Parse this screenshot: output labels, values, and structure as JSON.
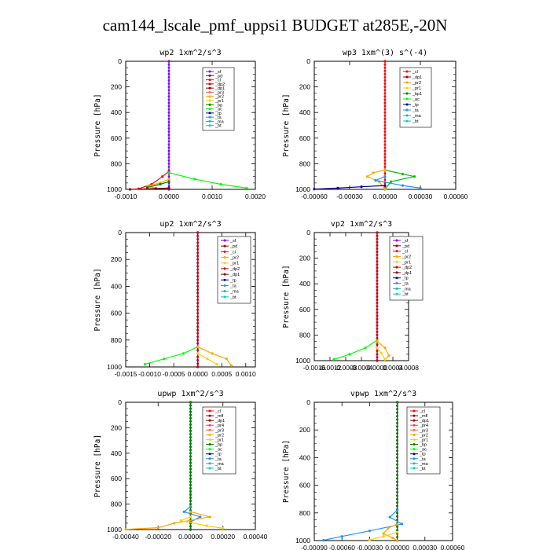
{
  "title": "cam144_lscale_pmf_uppsi1  BUDGET at285E,-20N",
  "chart_data": [
    {
      "type": "line",
      "title": "wp2   1xm^2/s^3",
      "ylabel": "Pressure  [hPa]",
      "xlim": [
        -0.001,
        0.002
      ],
      "ylim": [
        1000,
        0
      ],
      "xticks": [
        -0.001,
        0.0,
        0.001,
        0.002
      ],
      "xtick_labels": [
        "-0.0010",
        "0.0000",
        "0.0010",
        "0.0020"
      ],
      "yticks": [
        0,
        200,
        400,
        600,
        800,
        1000
      ],
      "ytick_labels": [
        "0",
        "200",
        "400",
        "600",
        "800",
        "1000"
      ],
      "legend": "top-right",
      "legend_entries": [
        "_sf",
        "_pd",
        "_cl",
        "_dp2",
        "_dp1",
        "_pr3",
        "_pr2",
        "_pr1",
        "_bp",
        "_ac",
        "_tp",
        "_ta",
        "_ma",
        "_bt"
      ],
      "series": [
        {
          "name": "_sf",
          "color": "#7f00ff",
          "points": [
            [
              0.0,
              0
            ],
            [
              0.0,
              1000
            ]
          ]
        },
        {
          "name": "_dp1",
          "color": "#ff0000",
          "points": [
            [
              0.0,
              860
            ],
            [
              -0.00015,
              900
            ],
            [
              -0.0004,
              960
            ],
            [
              -0.0007,
              995
            ]
          ]
        },
        {
          "name": "_pr2",
          "color": "#ffa500",
          "points": [
            [
              0.0,
              920
            ],
            [
              -0.0002,
              950
            ],
            [
              -0.0005,
              975
            ],
            [
              -0.0003,
              990
            ]
          ]
        },
        {
          "name": "_ac",
          "color": "#00ff00",
          "points": [
            [
              0.0,
              870
            ],
            [
              0.0006,
              920
            ],
            [
              0.0012,
              960
            ],
            [
              0.0018,
              990
            ]
          ]
        },
        {
          "name": "_pr1",
          "color": "#008000",
          "points": [
            [
              0.0,
              940
            ],
            [
              -0.0002,
              960
            ],
            [
              -0.0005,
              985
            ]
          ]
        },
        {
          "name": "_ta",
          "color": "#00008b",
          "points": [
            [
              0.0,
              990
            ],
            [
              -0.0003,
              995
            ]
          ]
        },
        {
          "name": "_pd",
          "color": "#8b0000",
          "points": [
            [
              0.0,
              990
            ],
            [
              -0.0009,
              1000
            ]
          ]
        }
      ]
    },
    {
      "type": "line",
      "title": "wp3   1xm^(3) s^(-4)",
      "ylabel": "Pressure  [hPa]",
      "xlim": [
        -0.0006,
        0.0006
      ],
      "ylim": [
        1000,
        0
      ],
      "xticks": [
        -0.0006,
        -0.0003,
        0.0,
        0.0003,
        0.0006
      ],
      "xtick_labels": [
        "-0.00060",
        "-0.00030",
        "0.00000",
        "0.00030",
        "0.00060"
      ],
      "yticks": [
        0,
        200,
        400,
        600,
        800,
        1000
      ],
      "ytick_labels": [
        "0",
        "200",
        "400",
        "600",
        "800",
        "1000"
      ],
      "legend": "top-right",
      "legend_entries": [
        "_cl",
        "_dp1",
        "_pr2",
        "_pr1",
        "_bp1",
        "_ac",
        "_tp",
        "_ta",
        "_ma",
        "_bt"
      ],
      "series": [
        {
          "name": "_cl",
          "color": "#ff0000",
          "points": [
            [
              0.0,
              0
            ],
            [
              0.0,
              1000
            ]
          ]
        },
        {
          "name": "_ac",
          "color": "#00c000",
          "points": [
            [
              0.0,
              850
            ],
            [
              0.00015,
              880
            ],
            [
              0.00025,
              900
            ],
            [
              5e-05,
              940
            ],
            [
              0.0,
              1000
            ]
          ]
        },
        {
          "name": "_pr2",
          "color": "#ffa500",
          "points": [
            [
              0.0,
              850
            ],
            [
              -0.0001,
              870
            ],
            [
              -0.00015,
              900
            ],
            [
              -5e-05,
              940
            ],
            [
              0.0,
              1000
            ]
          ]
        },
        {
          "name": "_ta",
          "color": "#1e90ff",
          "points": [
            [
              0.0,
              900
            ],
            [
              -8e-05,
              930
            ],
            [
              0.00015,
              970
            ],
            [
              0.0003,
              990
            ]
          ]
        },
        {
          "name": "_tp",
          "color": "#00008b",
          "points": [
            [
              0.0,
              970
            ],
            [
              -0.0002,
              980
            ],
            [
              -0.0004,
              990
            ],
            [
              -0.0006,
              998
            ]
          ]
        }
      ]
    },
    {
      "type": "line",
      "title": "up2   1xm^2/s^3",
      "ylabel": "Pressure  [hPa]",
      "xlim": [
        -0.0015,
        0.0012
      ],
      "ylim": [
        1000,
        0
      ],
      "xticks": [
        -0.0015,
        -0.001,
        -0.0005,
        0.0,
        0.0005,
        0.001
      ],
      "xtick_labels": [
        "-0.0015",
        "-0.0010",
        "-0.0005",
        "0.0000",
        "0.0005",
        "0.0010"
      ],
      "yticks": [
        0,
        200,
        400,
        600,
        800,
        1000
      ],
      "ytick_labels": [
        "0",
        "200",
        "400",
        "600",
        "800",
        "1000"
      ],
      "legend": "top-right",
      "legend_entries": [
        "_sf",
        "_pd",
        "_cl",
        "_pr2",
        "_pr1",
        "_dp2",
        "_dp1",
        "_tp",
        "_ta",
        "_ma",
        "_bt"
      ],
      "series": [
        {
          "name": "_sf",
          "color": "#7f00ff",
          "points": [
            [
              0.0,
              0
            ],
            [
              0.0,
              1000
            ]
          ]
        },
        {
          "name": "_cl",
          "color": "#cc0000",
          "points": [
            [
              0.0,
              0
            ],
            [
              0.0,
              1000
            ]
          ]
        },
        {
          "name": "_dp1",
          "color": "#00ff00",
          "points": [
            [
              0.0,
              850
            ],
            [
              -0.0003,
              900
            ],
            [
              -0.0007,
              940
            ],
            [
              -0.0011,
              980
            ]
          ]
        },
        {
          "name": "_pr2",
          "color": "#ffa500",
          "points": [
            [
              0.0,
              850
            ],
            [
              0.0003,
              900
            ],
            [
              0.0006,
              940
            ],
            [
              0.0007,
              990
            ]
          ]
        },
        {
          "name": "_pr1",
          "color": "#ffd000",
          "points": [
            [
              0.0,
              900
            ],
            [
              0.0002,
              940
            ],
            [
              0.0004,
              980
            ]
          ]
        }
      ]
    },
    {
      "type": "line",
      "title": "vp2   1xm^2/s^3",
      "ylabel": "Pressure  [hPa]",
      "xlim": [
        -0.0016,
        0.0008
      ],
      "ylim": [
        1000,
        0
      ],
      "xticks": [
        -0.0016,
        -0.0012,
        -0.0008,
        -0.0004,
        0.0,
        0.0004,
        0.0008
      ],
      "xtick_labels": [
        "-0.0016",
        "-0.0012",
        "-0.0008",
        "-0.0004",
        "0.0000",
        "0.0004",
        "0.0008"
      ],
      "yticks": [
        0,
        200,
        400,
        600,
        800,
        1000
      ],
      "ytick_labels": [
        "0",
        "200",
        "400",
        "600",
        "800",
        "1000"
      ],
      "legend": "top-right",
      "legend_entries": [
        "_sf",
        "_pd",
        "_cl",
        "_pr2",
        "_pr1",
        "_dp2",
        "_dp1",
        "_tp",
        "_ta",
        "_ma",
        "_bt"
      ],
      "series": [
        {
          "name": "_sf",
          "color": "#7f00ff",
          "points": [
            [
              0.0,
              0
            ],
            [
              0.0,
              1000
            ]
          ]
        },
        {
          "name": "_cl",
          "color": "#cc0000",
          "points": [
            [
              0.0,
              0
            ],
            [
              0.0,
              1000
            ]
          ]
        },
        {
          "name": "_dp1",
          "color": "#00ff00",
          "points": [
            [
              0.0,
              840
            ],
            [
              -0.0003,
              900
            ],
            [
              -0.0007,
              950
            ],
            [
              -0.0011,
              990
            ]
          ]
        },
        {
          "name": "_pr2",
          "color": "#ffa500",
          "points": [
            [
              0.0,
              850
            ],
            [
              0.0002,
              900
            ],
            [
              0.0003,
              960
            ],
            [
              0.0002,
              990
            ]
          ]
        },
        {
          "name": "_pr1",
          "color": "#ffd000",
          "points": [
            [
              0.0,
              900
            ],
            [
              0.0001,
              940
            ],
            [
              0.0002,
              990
            ]
          ]
        }
      ]
    },
    {
      "type": "line",
      "title": "upwp   1xm^2/s^3",
      "ylabel": "Pressure  [hPa]",
      "xlim": [
        -0.0004,
        0.0004
      ],
      "ylim": [
        1000,
        0
      ],
      "xticks": [
        -0.0004,
        -0.0002,
        0.0,
        0.0002,
        0.0004
      ],
      "xtick_labels": [
        "-0.00040",
        "-0.00020",
        "0.00000",
        "0.00020",
        "0.00040"
      ],
      "yticks": [
        0,
        200,
        400,
        600,
        800,
        1000
      ],
      "ytick_labels": [
        "0",
        "200",
        "400",
        "600",
        "800",
        "1000"
      ],
      "legend": "top-right",
      "legend_entries": [
        "_cl",
        "_mfl",
        "_dp1",
        "_pr4",
        "_pr3",
        "_pr2",
        "_pr1",
        "_bp",
        "_ac",
        "_tp",
        "_ta",
        "_ma",
        "_bt"
      ],
      "series": [
        {
          "name": "_cl",
          "color": "#7f00ff",
          "points": [
            [
              0.0,
              0
            ],
            [
              0.0,
              1000
            ]
          ]
        },
        {
          "name": "_dp1",
          "color": "#8b0000",
          "points": [
            [
              0.0,
              0
            ],
            [
              0.0,
              1000
            ]
          ]
        },
        {
          "name": "_ac",
          "color": "#008000",
          "points": [
            [
              0.0,
              0
            ],
            [
              0.0,
              1000
            ]
          ]
        },
        {
          "name": "_ta",
          "color": "#1e90ff",
          "points": [
            [
              0.0,
              820
            ],
            [
              -4e-05,
              860
            ],
            [
              6e-05,
              900
            ],
            [
              0.0,
              940
            ]
          ]
        },
        {
          "name": "_pr2",
          "color": "#ffa500",
          "points": [
            [
              0.0,
              860
            ],
            [
              0.00012,
              900
            ],
            [
              -0.0001,
              950
            ],
            [
              -0.0002,
              985
            ],
            [
              -0.0004,
              998
            ]
          ]
        },
        {
          "name": "_pr1",
          "color": "#ffd000",
          "points": [
            [
              0.0,
              900
            ],
            [
              -6e-05,
              930
            ],
            [
              0.0001,
              970
            ],
            [
              0.0002,
              990
            ]
          ]
        }
      ]
    },
    {
      "type": "line",
      "title": "vpwp   1xm^2/s^3",
      "ylabel": "Pressure  [hPa]",
      "xlim": [
        -0.0009,
        0.0006
      ],
      "ylim": [
        1000,
        0
      ],
      "xticks": [
        -0.0009,
        -0.0006,
        -0.0003,
        0.0,
        0.0003,
        0.0006
      ],
      "xtick_labels": [
        "-0.00090",
        "-0.00060",
        "-0.00030",
        "0.00000",
        "0.00030",
        "0.00060"
      ],
      "yticks": [
        0,
        200,
        400,
        600,
        800,
        1000
      ],
      "ytick_labels": [
        "0",
        "200",
        "400",
        "600",
        "800",
        "1000"
      ],
      "legend": "top-right",
      "legend_entries": [
        "_cl",
        "_mfl",
        "_dp1",
        "_pr4",
        "_pr3",
        "_pr2",
        "_pr1",
        "_bp",
        "_ac",
        "_tp",
        "_ta",
        "_ma",
        "_bt"
      ],
      "series": [
        {
          "name": "_cl",
          "color": "#7f00ff",
          "points": [
            [
              0.0,
              0
            ],
            [
              0.0,
              1000
            ]
          ]
        },
        {
          "name": "_dp1",
          "color": "#8b0000",
          "points": [
            [
              0.0,
              0
            ],
            [
              0.0,
              1000
            ]
          ]
        },
        {
          "name": "_ac",
          "color": "#008000",
          "points": [
            [
              0.0,
              0
            ],
            [
              0.0,
              1000
            ]
          ]
        },
        {
          "name": "_ta",
          "color": "#1e90ff",
          "points": [
            [
              0.0,
              780
            ],
            [
              -8e-05,
              830
            ],
            [
              5e-05,
              880
            ],
            [
              -0.0003,
              930
            ],
            [
              -0.0006,
              970
            ],
            [
              -0.0008,
              998
            ]
          ]
        },
        {
          "name": "_pr2",
          "color": "#ffa500",
          "points": [
            [
              0.0,
              880
            ],
            [
              -0.0001,
              910
            ],
            [
              -0.00015,
              950
            ],
            [
              -5e-05,
              980
            ],
            [
              0.0,
              1000
            ]
          ]
        },
        {
          "name": "_pr1",
          "color": "#ffd000",
          "points": [
            [
              0.0,
              940
            ],
            [
              -0.00015,
              970
            ],
            [
              -0.0003,
              995
            ]
          ]
        }
      ]
    }
  ],
  "colors": {
    "_sf": "#7f00ff",
    "_pd": "#8b0000",
    "_cl": "#ff0000",
    "_mfl": "#8b0000",
    "_dp2": "#cc0000",
    "_dp1": "#8b0000",
    "_pr4": "#ff4040",
    "_pr3": "#ff6347",
    "_pr2": "#ffa500",
    "_pr1": "#ffd000",
    "_bp": "#008000",
    "_bp1": "#008000",
    "_ac": "#00ff00",
    "_tp": "#00008b",
    "_ta": "#1e90ff",
    "_ma": "#20b2aa",
    "_bt": "#00ced1"
  }
}
